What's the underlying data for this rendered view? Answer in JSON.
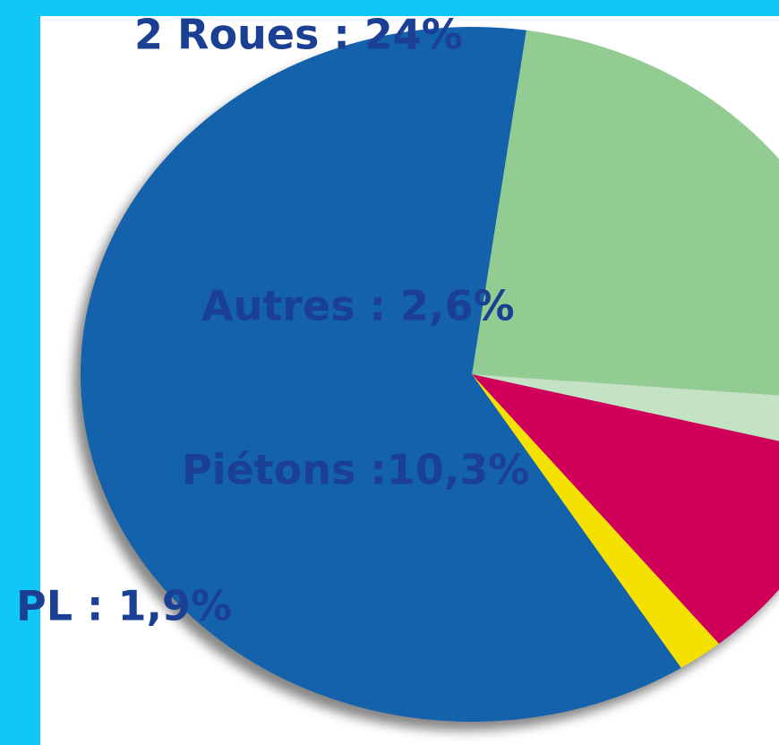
{
  "chart_data": {
    "type": "pie",
    "categories": [
      "2 Roues : 24%",
      "Autres : 2,6%",
      "Piétons :10,3%",
      "PL : 1,9%",
      null
    ],
    "values": [
      24,
      2.6,
      10.3,
      1.9,
      61.2
    ],
    "colors": [
      "#92cc92",
      "#c4e3c4",
      "#d0005a",
      "#f5e100",
      "#1461ac"
    ]
  }
}
